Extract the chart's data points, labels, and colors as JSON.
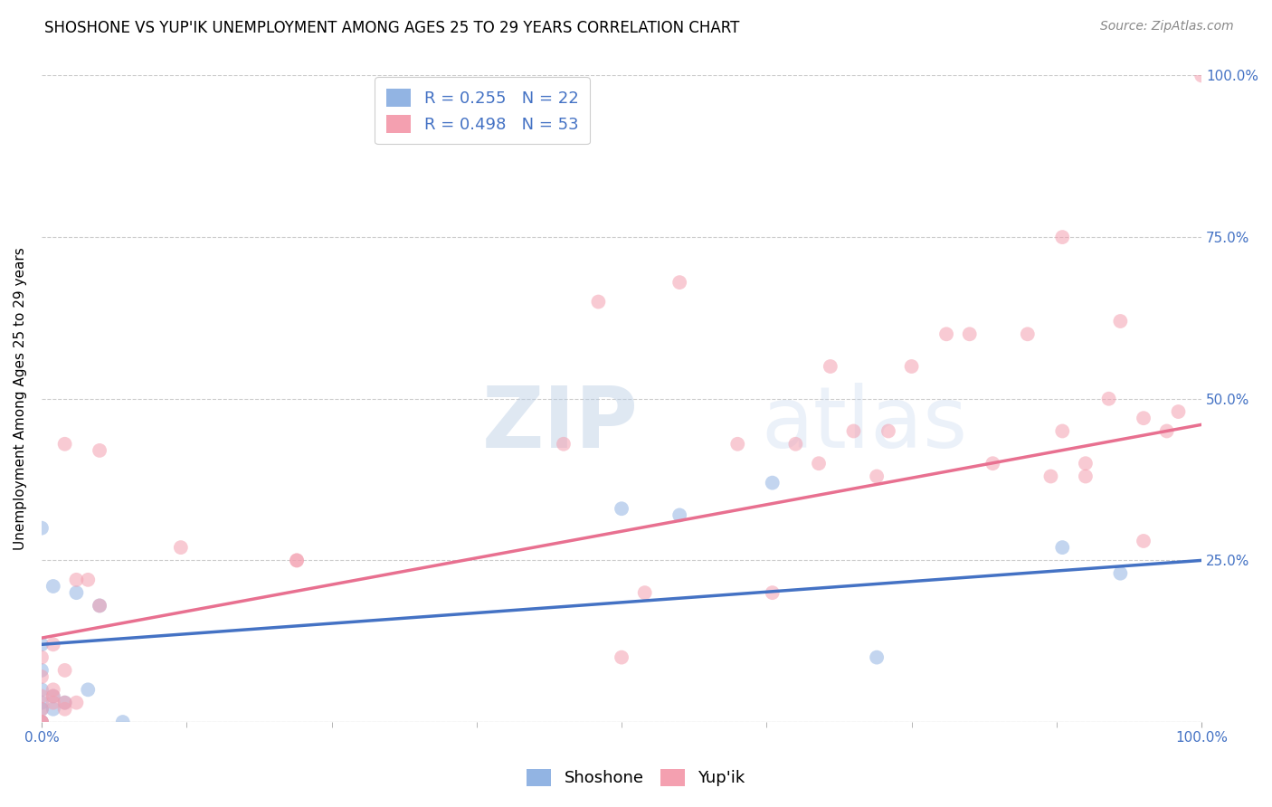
{
  "title": "SHOSHONE VS YUP'IK UNEMPLOYMENT AMONG AGES 25 TO 29 YEARS CORRELATION CHART",
  "source": "Source: ZipAtlas.com",
  "ylabel": "Unemployment Among Ages 25 to 29 years",
  "xlim": [
    0,
    1
  ],
  "ylim": [
    0,
    1
  ],
  "shoshone_color": "#92b4e3",
  "yupik_color": "#f4a0b0",
  "shoshone_line_color": "#4472c4",
  "yupik_line_color": "#e87090",
  "tick_color": "#4472c4",
  "watermark_color": "#d0dff0",
  "shoshone_R": 0.255,
  "shoshone_N": 22,
  "yupik_R": 0.498,
  "yupik_N": 53,
  "shoshone_line_x0": 0.0,
  "shoshone_line_y0": 0.12,
  "shoshone_line_x1": 1.0,
  "shoshone_line_y1": 0.25,
  "yupik_line_x0": 0.0,
  "yupik_line_y0": 0.13,
  "yupik_line_x1": 1.0,
  "yupik_line_y1": 0.46,
  "shoshone_x": [
    0.0,
    0.0,
    0.0,
    0.0,
    0.0,
    0.0,
    0.0,
    0.0,
    0.01,
    0.01,
    0.01,
    0.02,
    0.03,
    0.04,
    0.05,
    0.07,
    0.5,
    0.55,
    0.63,
    0.72,
    0.88,
    0.93
  ],
  "shoshone_y": [
    0.0,
    0.0,
    0.02,
    0.03,
    0.05,
    0.08,
    0.12,
    0.3,
    0.02,
    0.04,
    0.21,
    0.03,
    0.2,
    0.05,
    0.18,
    0.0,
    0.33,
    0.32,
    0.37,
    0.1,
    0.27,
    0.23
  ],
  "yupik_x": [
    0.0,
    0.0,
    0.0,
    0.0,
    0.0,
    0.0,
    0.0,
    0.01,
    0.01,
    0.01,
    0.01,
    0.02,
    0.02,
    0.02,
    0.02,
    0.03,
    0.03,
    0.04,
    0.05,
    0.05,
    0.12,
    0.22,
    0.22,
    0.45,
    0.48,
    0.5,
    0.52,
    0.55,
    0.6,
    0.63,
    0.65,
    0.67,
    0.68,
    0.7,
    0.72,
    0.73,
    0.75,
    0.78,
    0.8,
    0.82,
    0.85,
    0.87,
    0.88,
    0.88,
    0.9,
    0.9,
    0.92,
    0.93,
    0.95,
    0.95,
    0.97,
    0.98,
    1.0
  ],
  "yupik_y": [
    0.0,
    0.0,
    0.0,
    0.02,
    0.04,
    0.07,
    0.1,
    0.03,
    0.04,
    0.05,
    0.12,
    0.02,
    0.03,
    0.08,
    0.43,
    0.03,
    0.22,
    0.22,
    0.18,
    0.42,
    0.27,
    0.25,
    0.25,
    0.43,
    0.65,
    0.1,
    0.2,
    0.68,
    0.43,
    0.2,
    0.43,
    0.4,
    0.55,
    0.45,
    0.38,
    0.45,
    0.55,
    0.6,
    0.6,
    0.4,
    0.6,
    0.38,
    0.45,
    0.75,
    0.4,
    0.38,
    0.5,
    0.62,
    0.28,
    0.47,
    0.45,
    0.48,
    1.0
  ],
  "marker_size": 130,
  "marker_alpha": 0.55,
  "grid_color": "#cccccc",
  "background_color": "#ffffff",
  "title_fontsize": 12,
  "axis_label_fontsize": 11,
  "tick_fontsize": 11,
  "legend_fontsize": 13,
  "source_fontsize": 10
}
